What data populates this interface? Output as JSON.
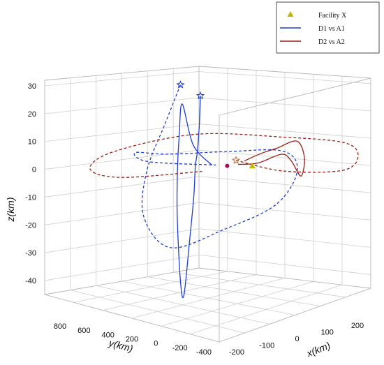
{
  "chart_data": {
    "type": "line3d",
    "title": "",
    "xlabel": "x(km)",
    "ylabel": "y(km)",
    "zlabel": "z(km)",
    "xticks": [
      "-200",
      "-100",
      "0",
      "100",
      "200"
    ],
    "yticks": [
      "800",
      "600",
      "400",
      "200",
      "0",
      "-200",
      "-400"
    ],
    "zticks": [
      "30",
      "20",
      "10",
      "0",
      "-10",
      "-20",
      "-30",
      "-40"
    ],
    "xlim": [
      -200,
      260
    ],
    "ylim": [
      -450,
      900
    ],
    "zlim": [
      -45,
      32
    ],
    "grid": true,
    "legend_position": "top-right",
    "legend": [
      {
        "label": "Facility X",
        "marker": "triangle",
        "color": "#c9b400"
      },
      {
        "label": "D1 vs A1",
        "line": "solid",
        "color": "#1f3fd0"
      },
      {
        "label": "D2 vs A2",
        "line": "solid",
        "color": "#9b1c12"
      }
    ],
    "series": [
      {
        "name": "D1 vs A1",
        "color": "#1f3fd0",
        "style": "solid",
        "points_xyz": [
          [
            -5,
            150,
            25
          ],
          [
            -6,
            155,
            15
          ],
          [
            -8,
            165,
            5
          ],
          [
            -10,
            175,
            0
          ],
          [
            -20,
            160,
            -10
          ],
          [
            -40,
            140,
            -25
          ],
          [
            -60,
            130,
            -43
          ],
          [
            -70,
            130,
            -37
          ],
          [
            -60,
            180,
            -15
          ],
          [
            -40,
            230,
            0
          ],
          [
            -20,
            270,
            10
          ],
          [
            0,
            300,
            20
          ],
          [
            20,
            270,
            5
          ],
          [
            40,
            180,
            -2
          ]
        ]
      },
      {
        "name": "D1 vs A1",
        "color": "#1f3fd0",
        "style": "dashed",
        "points_xyz": [
          [
            -5,
            300,
            27
          ],
          [
            -40,
            320,
            15
          ],
          [
            -90,
            330,
            0
          ],
          [
            -110,
            300,
            -15
          ],
          [
            -90,
            150,
            -25
          ],
          [
            -30,
            -100,
            -18
          ],
          [
            40,
            -300,
            -10
          ],
          [
            90,
            -330,
            0
          ],
          [
            100,
            -200,
            5
          ],
          [
            60,
            100,
            3
          ],
          [
            0,
            400,
            1
          ],
          [
            -20,
            600,
            0
          ],
          [
            -20,
            500,
            -2
          ],
          [
            20,
            100,
            0
          ]
        ]
      },
      {
        "name": "D2 vs A2",
        "color": "#9b1c12",
        "style": "solid",
        "points_xyz": [
          [
            50,
            10,
            0
          ],
          [
            80,
            -60,
            0
          ],
          [
            110,
            -160,
            3
          ],
          [
            130,
            -180,
            0
          ],
          [
            150,
            -200,
            -6
          ],
          [
            160,
            -200,
            0
          ],
          [
            150,
            -170,
            6
          ],
          [
            120,
            -100,
            4
          ],
          [
            90,
            -60,
            3
          ],
          [
            60,
            -10,
            1
          ]
        ]
      },
      {
        "name": "D2 vs A2",
        "color": "#9b1c12",
        "style": "dashed",
        "points_xyz": [
          [
            40,
            0,
            2
          ],
          [
            100,
            -200,
            -2
          ],
          [
            200,
            -380,
            -4
          ],
          [
            230,
            -420,
            0
          ],
          [
            200,
            -400,
            6
          ],
          [
            100,
            -200,
            10
          ],
          [
            -20,
            150,
            12
          ],
          [
            -120,
            500,
            6
          ],
          [
            -150,
            600,
            0
          ],
          [
            -100,
            500,
            -4
          ],
          [
            0,
            150,
            -2
          ]
        ]
      }
    ],
    "markers": [
      {
        "name": "D1 start",
        "shape": "star",
        "color": "#1f3fd0",
        "x": -5,
        "y": 300,
        "z": 27
      },
      {
        "name": "D1 start",
        "shape": "star",
        "color": "#1f3fd0",
        "x": -5,
        "y": 150,
        "z": 25
      },
      {
        "name": "D2 start",
        "shape": "star",
        "color": "#c0763a",
        "x": 40,
        "y": 0,
        "z": 2
      },
      {
        "name": "Facility X",
        "shape": "triangle",
        "color": "#c9b400",
        "x": 60,
        "y": -70,
        "z": 0
      },
      {
        "name": "Center",
        "shape": "circle",
        "color": "#b00060",
        "x": 30,
        "y": 40,
        "z": 0
      }
    ]
  }
}
